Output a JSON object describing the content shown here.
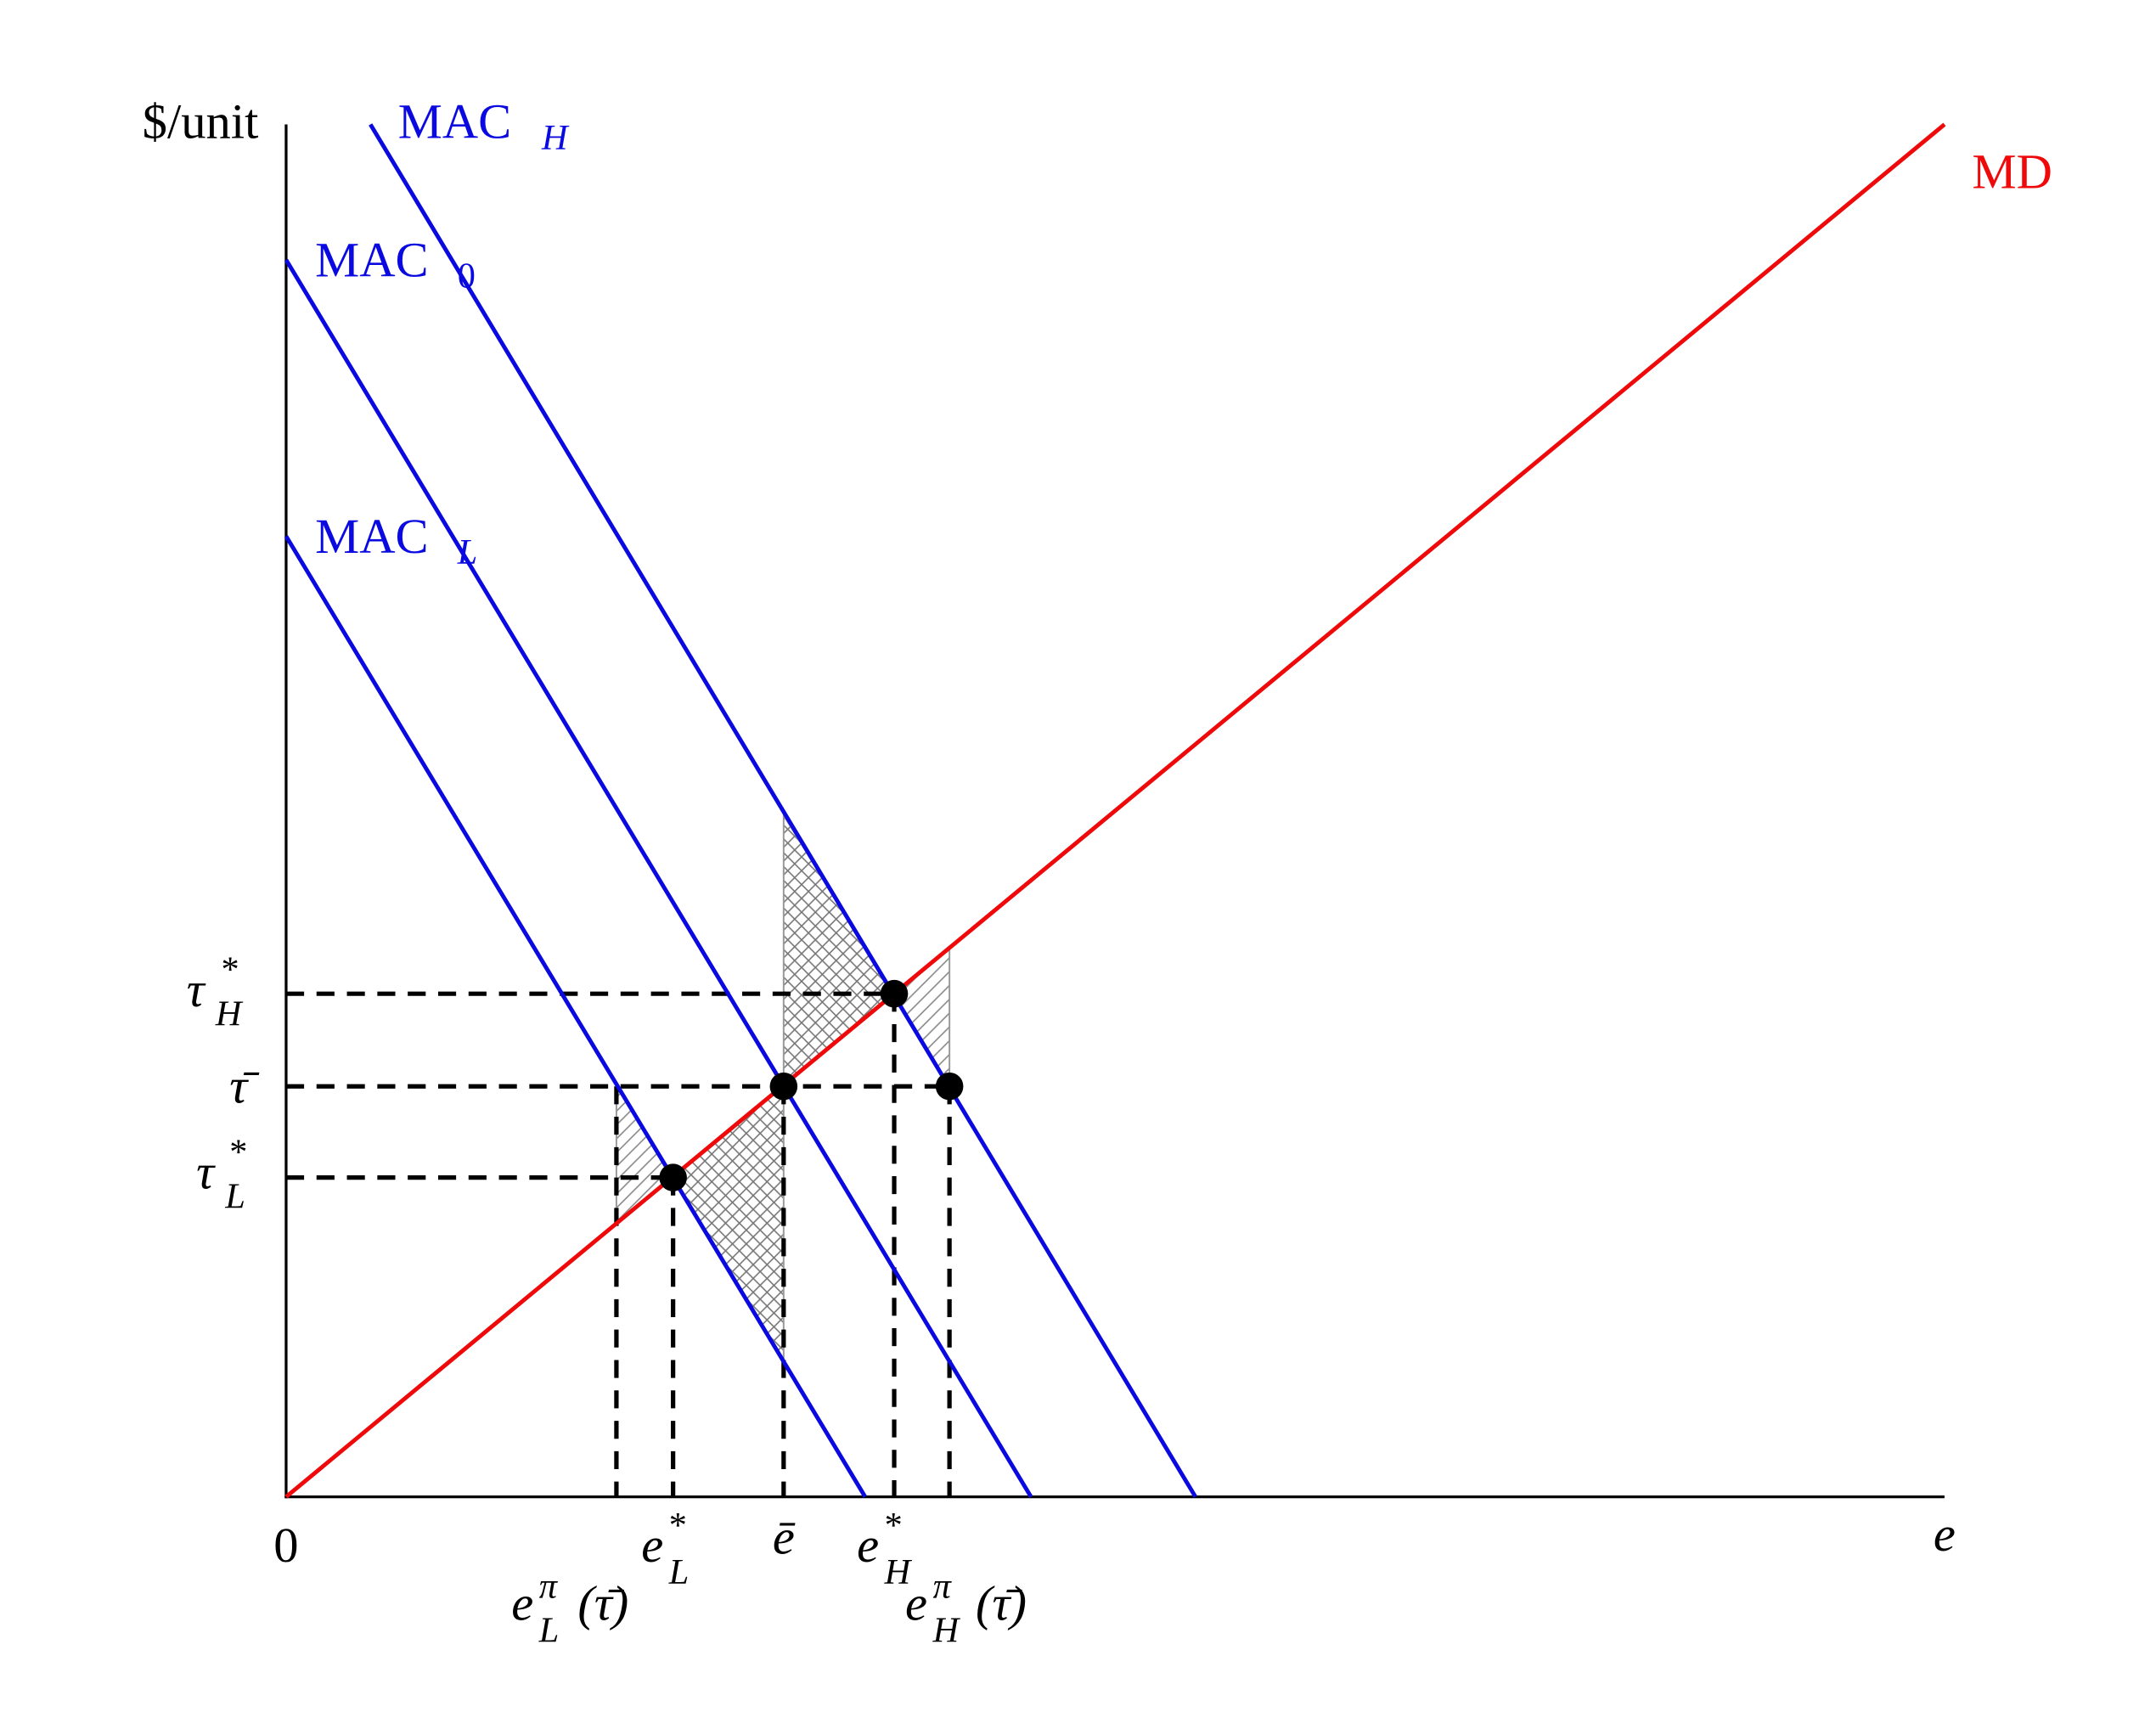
{
  "axes": {
    "y_label": "$/unit",
    "origin": "0",
    "x_label": "e"
  },
  "curves": {
    "mac_h": {
      "base": "MAC",
      "sub": "H"
    },
    "mac_0": {
      "base": "MAC",
      "sub": "0"
    },
    "mac_l": {
      "base": "MAC",
      "sub": "L"
    },
    "md": "MD"
  },
  "y_ticks": [
    {
      "base": "τ",
      "sup": "*",
      "sub": "H"
    },
    {
      "base": "τ̄"
    },
    {
      "base": "τ",
      "sup": "*",
      "sub": "L"
    }
  ],
  "x_ticks": [
    {
      "base": "e",
      "sup": "*",
      "sub": "L"
    },
    {
      "base": "ē"
    },
    {
      "base": "e",
      "sup": "*",
      "sub": "H"
    },
    {
      "base": "e",
      "sup": "π",
      "sub": "L",
      "arg": "(τ̄)"
    },
    {
      "base": "e",
      "sup": "π",
      "sub": "H",
      "arg": "(τ̄)"
    }
  ]
}
